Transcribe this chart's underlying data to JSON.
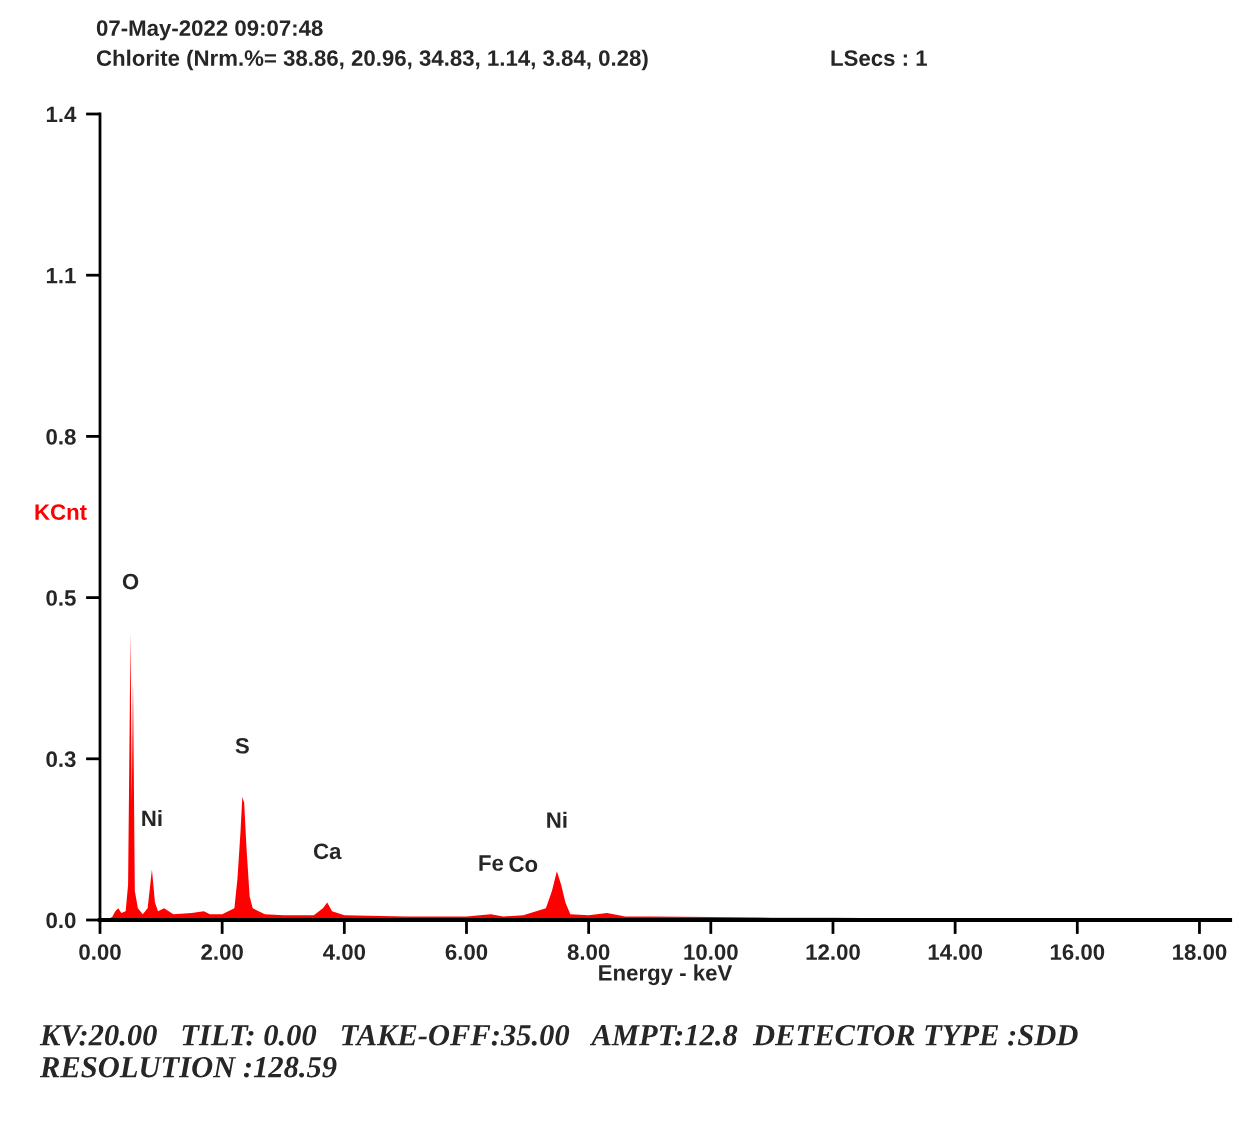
{
  "chart_data": {
    "type": "area",
    "title": "07-May-2022 09:07:48",
    "subtitle": "Chlorite (Nrm.%= 38.86, 20.96, 34.83, 1.14, 3.84, 0.28)",
    "xlabel": "Energy - keV",
    "ylabel": "KCnt",
    "series": [
      {
        "color": "#ff0000",
        "x": [
          0.1,
          0.2,
          0.25,
          0.3,
          0.35,
          0.42,
          0.46,
          0.5,
          0.52,
          0.54,
          0.57,
          0.62,
          0.7,
          0.78,
          0.85,
          0.9,
          0.95,
          1.05,
          1.2,
          1.5,
          1.7,
          1.8,
          2.0,
          2.2,
          2.25,
          2.3,
          2.33,
          2.36,
          2.4,
          2.45,
          2.5,
          2.7,
          3.0,
          3.5,
          3.65,
          3.72,
          3.8,
          4.0,
          5.0,
          6.0,
          6.4,
          6.6,
          6.93,
          7.3,
          7.4,
          7.48,
          7.55,
          7.62,
          7.7,
          8.0,
          8.3,
          8.6,
          9.0,
          10.0,
          11.0,
          12.0,
          13.0,
          14.0,
          15.0,
          16.0,
          17.0,
          17.5
        ],
        "values": [
          0,
          0.005,
          0.015,
          0.02,
          0.012,
          0.015,
          0.06,
          0.49,
          0.2,
          0.41,
          0.05,
          0.02,
          0.01,
          0.02,
          0.086,
          0.03,
          0.015,
          0.02,
          0.01,
          0.012,
          0.015,
          0.01,
          0.01,
          0.02,
          0.07,
          0.15,
          0.21,
          0.2,
          0.12,
          0.04,
          0.02,
          0.01,
          0.008,
          0.008,
          0.02,
          0.03,
          0.015,
          0.008,
          0.006,
          0.006,
          0.01,
          0.006,
          0.008,
          0.02,
          0.05,
          0.083,
          0.06,
          0.03,
          0.01,
          0.008,
          0.012,
          0.006,
          0.006,
          0.005,
          0.004,
          0.004,
          0.003,
          0.003,
          0.002,
          0.002,
          0.003,
          0
        ]
      }
    ],
    "xlim": [
      0,
      18.5
    ],
    "xticks": [
      {
        "value": 0,
        "label": "0.00"
      },
      {
        "value": 2,
        "label": "2.00"
      },
      {
        "value": 4,
        "label": "4.00"
      },
      {
        "value": 6,
        "label": "6.00"
      },
      {
        "value": 8,
        "label": "8.00"
      },
      {
        "value": 10,
        "label": "10.00"
      },
      {
        "value": 12,
        "label": "12.00"
      },
      {
        "value": 14,
        "label": "14.00"
      },
      {
        "value": 16,
        "label": "16.00"
      },
      {
        "value": 18,
        "label": "18.00"
      }
    ],
    "ylim": [
      0,
      1.375
    ],
    "yticks": [
      {
        "value": 0,
        "label": "0.0"
      },
      {
        "value": 0.275,
        "label": "0.3"
      },
      {
        "value": 0.55,
        "label": "0.5"
      },
      {
        "value": 0.825,
        "label": "0.8"
      },
      {
        "value": 1.1,
        "label": "1.1"
      },
      {
        "value": 1.375,
        "label": "1.4"
      }
    ],
    "grid": false,
    "legend": false,
    "annotations": [
      "LSecs : 1",
      {
        "text": "O",
        "x": 0.5,
        "y": 0.49
      },
      {
        "text": "Ni",
        "x": 0.85,
        "y": 0.086
      },
      {
        "text": "S",
        "x": 2.33,
        "y": 0.21
      },
      {
        "text": "Ca",
        "x": 3.72,
        "y": 0.03
      },
      {
        "text": "Fe",
        "x": 6.4,
        "y": 0.01
      },
      {
        "text": "Co",
        "x": 6.93,
        "y": 0.008
      },
      {
        "text": "Ni",
        "x": 7.48,
        "y": 0.083
      },
      "KV:20.00   TILT: 0.00   TAKE-OFF:35.00   AMPT:12.8  DETECTOR TYPE :SDD   RESOLUTION :128.59"
    ]
  }
}
